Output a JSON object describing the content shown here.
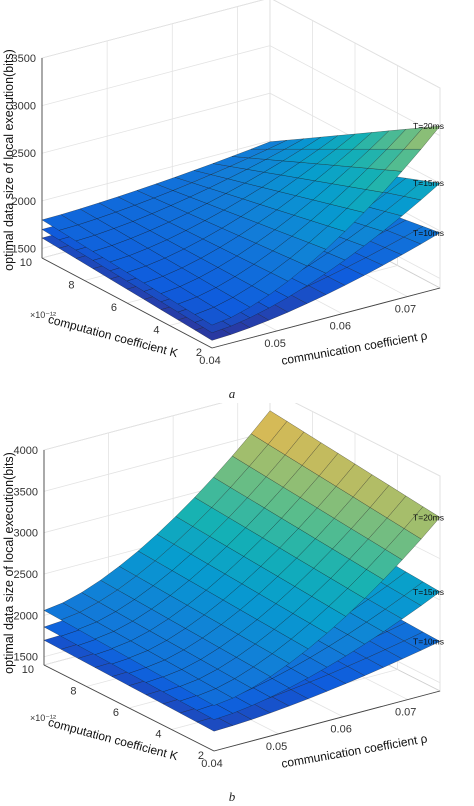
{
  "chart_data": [
    {
      "type": "surface",
      "caption": "a",
      "zlabel": "optimal data size of local execution(bits)",
      "xlabel": "communication coefficient ρ",
      "ylabel": "computation coefficient K",
      "y_exponent": "×10⁻¹²",
      "zticks": [
        1500,
        2000,
        2500,
        3000,
        3500
      ],
      "zlim": [
        1400,
        3500
      ],
      "xticks": [
        0.04,
        0.05,
        0.06,
        0.07
      ],
      "xlim": [
        0.04,
        0.075
      ],
      "yticks": [
        2,
        4,
        6,
        8,
        10
      ],
      "ylim": [
        2,
        10
      ],
      "grid": true,
      "colormap": "parula",
      "series": [
        {
          "name": "T=20ms",
          "z_corners": {
            "x0_y2": 1640,
            "x1_y2": 3100,
            "x0_y10": 1800,
            "x1_y10": 1990
          }
        },
        {
          "name": "T=15ms",
          "z_corners": {
            "x0_y2": 1560,
            "x1_y2": 2500,
            "x0_y10": 1700,
            "x1_y10": 1820
          }
        },
        {
          "name": "T=10ms",
          "z_corners": {
            "x0_y2": 1480,
            "x1_y2": 1980,
            "x0_y10": 1610,
            "x1_y10": 1700
          }
        }
      ]
    },
    {
      "type": "surface",
      "caption": "b",
      "zlabel": "optimal data size of local execution(bits)",
      "xlabel": "communication coefficient ρ",
      "ylabel": "computation coefficient K",
      "y_exponent": "×10⁻¹²",
      "zticks": [
        1500,
        2000,
        2500,
        3000,
        3500,
        4000
      ],
      "zlim": [
        1400,
        4000
      ],
      "xticks": [
        0.04,
        0.05,
        0.06,
        0.07
      ],
      "xlim": [
        0.04,
        0.075
      ],
      "yticks": [
        2,
        4,
        6,
        8,
        10
      ],
      "ylim": [
        2,
        10
      ],
      "grid": true,
      "colormap": "parula",
      "series": [
        {
          "name": "T=20ms",
          "z_corners": {
            "x0_y2": 1950,
            "x1_y2": 3500,
            "x0_y10": 2060,
            "x1_y10": 3750
          }
        },
        {
          "name": "T=15ms",
          "z_corners": {
            "x0_y2": 1780,
            "x1_y2": 2600,
            "x0_y10": 1860,
            "x1_y10": 2760
          }
        },
        {
          "name": "T=10ms",
          "z_corners": {
            "x0_y2": 1640,
            "x1_y2": 2000,
            "x0_y10": 1700,
            "x1_y10": 2100
          }
        }
      ]
    }
  ]
}
